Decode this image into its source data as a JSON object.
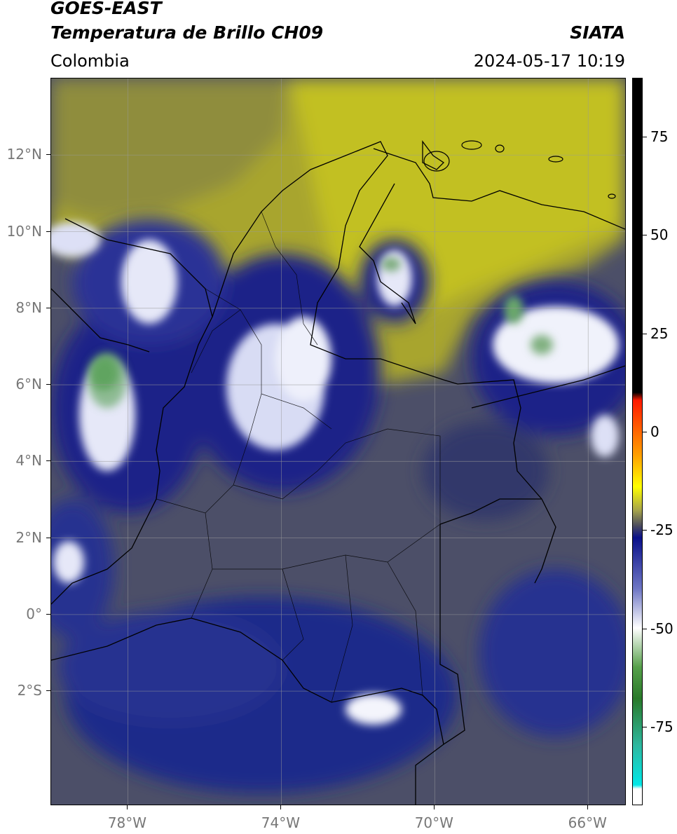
{
  "header": {
    "satellite": "GOES-EAST",
    "product": "Temperatura de Brillo CH09",
    "organization": "SIATA",
    "region": "Colombia",
    "datetime": "2024-05-17 10:19"
  },
  "map": {
    "extent": {
      "lon_min": -80,
      "lon_max": -65,
      "lat_min": -5,
      "lat_max": 14
    },
    "lat_ticks": [
      {
        "lat": 12,
        "label": "12°N"
      },
      {
        "lat": 10,
        "label": "10°N"
      },
      {
        "lat": 8,
        "label": "8°N"
      },
      {
        "lat": 6,
        "label": "6°N"
      },
      {
        "lat": 4,
        "label": "4°N"
      },
      {
        "lat": 2,
        "label": "2°N"
      },
      {
        "lat": 0,
        "label": "0°"
      },
      {
        "lat": -2,
        "label": "2°S"
      }
    ],
    "lon_ticks": [
      {
        "lon": -78,
        "label": "78°W"
      },
      {
        "lon": -74,
        "label": "74°W"
      },
      {
        "lon": -70,
        "label": "70°W"
      },
      {
        "lon": -66,
        "label": "66°W"
      }
    ],
    "colors": {
      "warm_surface": "#b4b42a",
      "mid_level": "#4c4f68",
      "cold_cloud": "#1f2a8a",
      "very_cold": "#ffffff",
      "coldest": "#4f9a4a",
      "border": "#000000",
      "grid": "#9a9a9a"
    }
  },
  "colorbar": {
    "min": -95,
    "max": 90,
    "ticks": [
      {
        "value": 75,
        "label": "75"
      },
      {
        "value": 50,
        "label": "50"
      },
      {
        "value": 25,
        "label": "25"
      },
      {
        "value": 0,
        "label": "0"
      },
      {
        "value": -25,
        "label": "-25"
      },
      {
        "value": -50,
        "label": "-50"
      },
      {
        "value": -75,
        "label": "-75"
      }
    ],
    "stops": [
      {
        "value": 90,
        "color": "#000000"
      },
      {
        "value": 10,
        "color": "#000000"
      },
      {
        "value": 8,
        "color": "#ff1a00"
      },
      {
        "value": -6,
        "color": "#ffa000"
      },
      {
        "value": -14,
        "color": "#ffff00"
      },
      {
        "value": -20,
        "color": "#a6a44a"
      },
      {
        "value": -24,
        "color": "#4a4a5e"
      },
      {
        "value": -27,
        "color": "#0a108a"
      },
      {
        "value": -40,
        "color": "#6e76c4"
      },
      {
        "value": -50,
        "color": "#ffffff"
      },
      {
        "value": -60,
        "color": "#56a04a"
      },
      {
        "value": -68,
        "color": "#2a7a2a"
      },
      {
        "value": -80,
        "color": "#2eb8a0"
      },
      {
        "value": -90,
        "color": "#00e8e8"
      },
      {
        "value": -91,
        "color": "#ffffff"
      },
      {
        "value": -95,
        "color": "#ffffff"
      }
    ]
  }
}
